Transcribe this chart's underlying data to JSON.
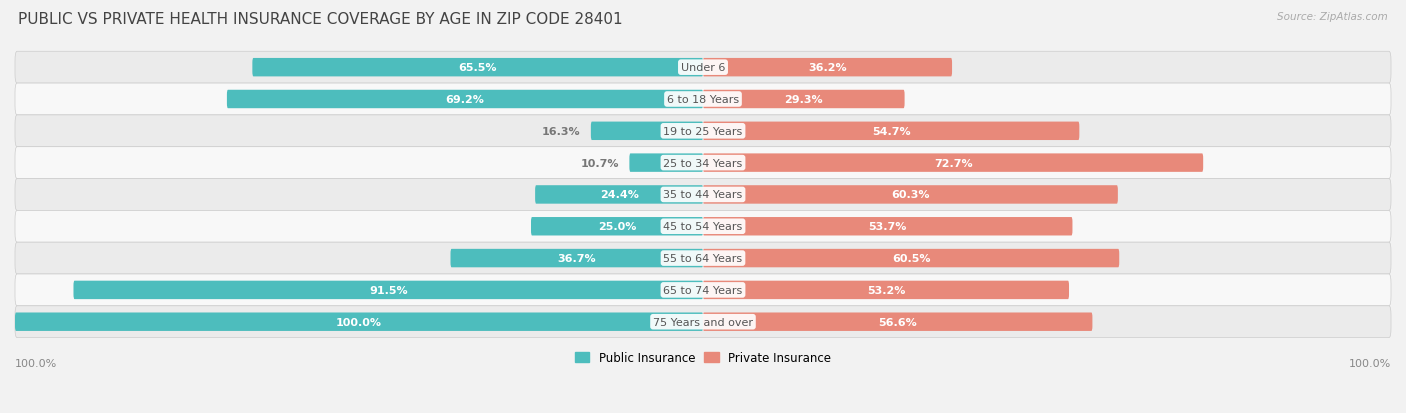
{
  "title": "PUBLIC VS PRIVATE HEALTH INSURANCE COVERAGE BY AGE IN ZIP CODE 28401",
  "source": "Source: ZipAtlas.com",
  "categories": [
    "Under 6",
    "6 to 18 Years",
    "19 to 25 Years",
    "25 to 34 Years",
    "35 to 44 Years",
    "45 to 54 Years",
    "55 to 64 Years",
    "65 to 74 Years",
    "75 Years and over"
  ],
  "public_values": [
    65.5,
    69.2,
    16.3,
    10.7,
    24.4,
    25.0,
    36.7,
    91.5,
    100.0
  ],
  "private_values": [
    36.2,
    29.3,
    54.7,
    72.7,
    60.3,
    53.7,
    60.5,
    53.2,
    56.6
  ],
  "public_color": "#4DBDBD",
  "private_color": "#E8897A",
  "row_bg_colors": [
    "#EBEBEB",
    "#F8F8F8"
  ],
  "label_color_white": "#FFFFFF",
  "label_color_dark": "#777777",
  "center_label_color": "#555555",
  "max_value": 100.0,
  "bar_height": 0.58,
  "title_fontsize": 11,
  "bar_label_fontsize": 8.0,
  "category_fontsize": 8.0,
  "legend_fontsize": 8.5,
  "axis_label_fontsize": 8,
  "white_label_threshold": 18
}
